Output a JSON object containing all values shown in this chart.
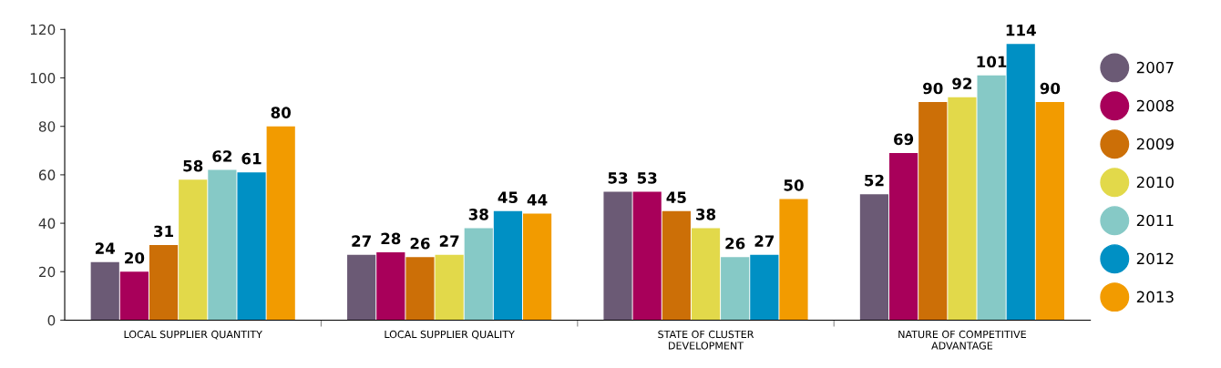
{
  "chart_data": {
    "type": "bar",
    "categories": [
      "LOCAL SUPPLIER QUANTITY",
      "LOCAL SUPPLIER QUALITY",
      "STATE OF CLUSTER\nDEVELOPMENT",
      "NATURE OF COMPETITIVE\nADVANTAGE"
    ],
    "series": [
      {
        "name": "2007",
        "color": "#6b5a75",
        "values": [
          24,
          27,
          53,
          52
        ]
      },
      {
        "name": "2008",
        "color": "#a8005a",
        "values": [
          20,
          28,
          53,
          69
        ]
      },
      {
        "name": "2009",
        "color": "#cc6f07",
        "values": [
          31,
          26,
          45,
          90
        ]
      },
      {
        "name": "2010",
        "color": "#e2d94a",
        "values": [
          58,
          27,
          38,
          92
        ]
      },
      {
        "name": "2011",
        "color": "#86c9c6",
        "values": [
          62,
          38,
          26,
          101
        ]
      },
      {
        "name": "2012",
        "color": "#0090c4",
        "values": [
          61,
          45,
          27,
          114
        ]
      },
      {
        "name": "2013",
        "color": "#f29b00",
        "values": [
          80,
          44,
          50,
          90
        ]
      }
    ],
    "ylim": [
      0,
      120
    ],
    "yticks": [
      0,
      20,
      40,
      60,
      80,
      100,
      120
    ],
    "data_labels": true,
    "grid": false,
    "legend": "right"
  }
}
